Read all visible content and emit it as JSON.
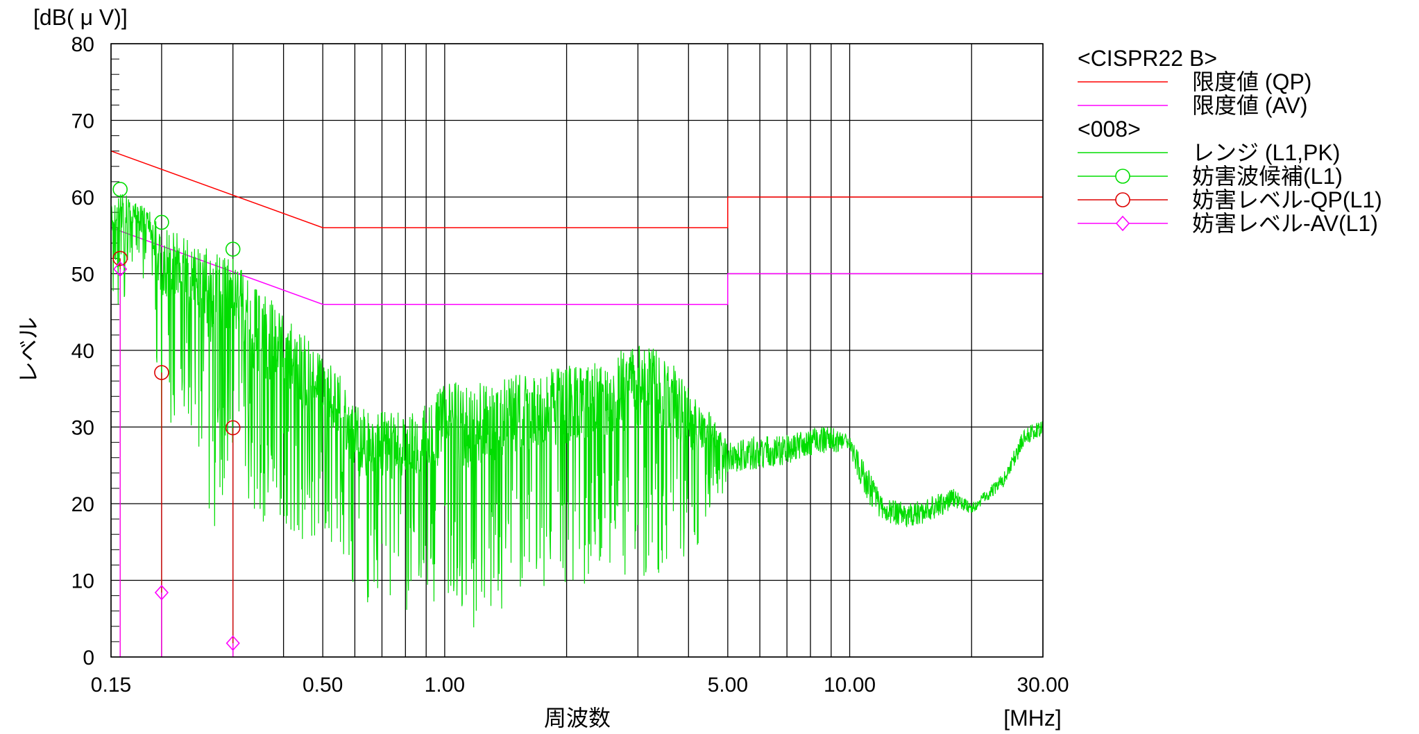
{
  "chart_data": {
    "type": "line",
    "y_unit_label": "[dB( μ V)]",
    "ylabel": "レベル",
    "xlabel": "周波数",
    "x_unit_label": "[MHz]",
    "x_scale": "log",
    "xlim": [
      0.15,
      30
    ],
    "ylim": [
      0,
      80
    ],
    "grid": true,
    "legend_position": "right",
    "x_tick_labels": [
      {
        "value": 0.15,
        "label": "0.15"
      },
      {
        "value": 0.5,
        "label": "0.50"
      },
      {
        "value": 1,
        "label": "1.00"
      },
      {
        "value": 5,
        "label": "5.00"
      },
      {
        "value": 10,
        "label": "10.00"
      },
      {
        "value": 30,
        "label": "30.00"
      }
    ],
    "x_gridlines": [
      0.15,
      0.2,
      0.3,
      0.4,
      0.5,
      0.6,
      0.7,
      0.8,
      0.9,
      1,
      2,
      3,
      4,
      5,
      6,
      7,
      8,
      9,
      10,
      20,
      30
    ],
    "y_ticks": [
      0,
      10,
      20,
      30,
      40,
      50,
      60,
      70,
      80
    ],
    "y_tick_labels": [
      "0",
      "10",
      "20",
      "30",
      "40",
      "50",
      "60",
      "70",
      "80"
    ],
    "legend": {
      "groups": [
        {
          "header": "<CISPR22 B>",
          "entries": [
            {
              "key": "limit_qp",
              "label": "限度値 (QP)",
              "color": "#ff0000",
              "marker": "none"
            },
            {
              "key": "limit_av",
              "label": "限度値 (AV)",
              "color": "#ff00ff",
              "marker": "none"
            }
          ]
        },
        {
          "header": "<008>",
          "entries": [
            {
              "key": "range_pk",
              "label": "レンジ (L1,PK)",
              "color": "#00dd00",
              "marker": "none"
            },
            {
              "key": "candidates",
              "label": "妨害波候補(L1)",
              "color": "#00dd00",
              "marker": "circle"
            },
            {
              "key": "level_qp",
              "label": "妨害レベル-QP(L1)",
              "color": "#dd0000",
              "marker": "circle"
            },
            {
              "key": "level_av",
              "label": "妨害レベル-AV(L1)",
              "color": "#ff00ff",
              "marker": "diamond"
            }
          ]
        }
      ]
    },
    "series": [
      {
        "key": "limit_qp",
        "color": "#ff0000",
        "x": [
          0.15,
          0.5,
          0.5,
          5,
          5,
          30
        ],
        "y": [
          66,
          56,
          56,
          56,
          60,
          60
        ]
      },
      {
        "key": "limit_av",
        "color": "#ff00ff",
        "x": [
          0.15,
          0.5,
          0.5,
          5,
          5,
          30
        ],
        "y": [
          56,
          46,
          46,
          46,
          50,
          50
        ]
      },
      {
        "key": "range_pk",
        "color": "#00dd00",
        "envelope": [
          [
            0.15,
            61,
            45
          ],
          [
            0.16,
            61,
            46
          ],
          [
            0.17,
            60,
            50
          ],
          [
            0.19,
            58,
            46
          ],
          [
            0.2,
            57,
            26
          ],
          [
            0.22,
            56,
            30
          ],
          [
            0.24,
            54,
            30
          ],
          [
            0.27,
            53,
            15
          ],
          [
            0.3,
            52,
            25
          ],
          [
            0.35,
            48,
            14
          ],
          [
            0.4,
            45,
            18
          ],
          [
            0.45,
            42,
            13
          ],
          [
            0.5,
            39,
            15
          ],
          [
            0.55,
            37,
            15
          ],
          [
            0.6,
            33,
            6
          ],
          [
            0.7,
            32,
            8
          ],
          [
            0.8,
            32,
            5
          ],
          [
            0.9,
            33,
            7
          ],
          [
            1.0,
            36,
            6
          ],
          [
            1.2,
            36,
            3
          ],
          [
            1.5,
            37,
            8
          ],
          [
            2.0,
            38,
            9
          ],
          [
            2.5,
            39,
            9
          ],
          [
            3.0,
            41,
            10
          ],
          [
            3.5,
            40,
            11
          ],
          [
            4.0,
            35,
            12
          ],
          [
            4.5,
            32,
            18
          ],
          [
            5.0,
            28,
            22
          ],
          [
            6.0,
            29,
            22
          ],
          [
            7.0,
            29,
            23
          ],
          [
            8.0,
            30,
            24
          ],
          [
            9.0,
            30,
            25
          ],
          [
            10.0,
            29,
            25
          ],
          [
            11.0,
            25,
            18
          ],
          [
            12.0,
            21,
            16
          ],
          [
            14.0,
            20,
            15
          ],
          [
            16.0,
            21,
            16
          ],
          [
            18.0,
            22,
            18
          ],
          [
            20.0,
            20,
            18
          ],
          [
            24.0,
            24,
            21
          ],
          [
            27.0,
            30,
            26
          ],
          [
            30.0,
            31,
            28
          ]
        ]
      },
      {
        "key": "candidates",
        "marker": "circle",
        "color": "#00dd00",
        "x": [
          0.158,
          0.2,
          0.3
        ],
        "y": [
          61,
          56.7,
          53.2
        ]
      },
      {
        "key": "level_qp",
        "marker": "circle",
        "color": "#dd0000",
        "x": [
          0.158,
          0.2,
          0.3
        ],
        "y": [
          52,
          37.1,
          29.9
        ]
      },
      {
        "key": "level_av",
        "marker": "diamond",
        "color": "#ff00ff",
        "x": [
          0.158,
          0.2,
          0.3
        ],
        "y": [
          50.6,
          8.4,
          1.8
        ]
      }
    ]
  }
}
